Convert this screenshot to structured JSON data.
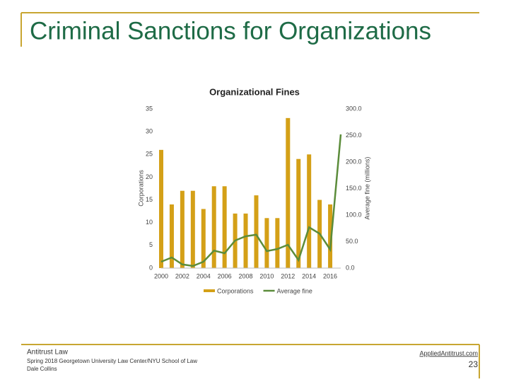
{
  "slide": {
    "title": "Criminal Sanctions for Organizations",
    "footer_left": [
      "Antitrust Law",
      "Spring 2018 Georgetown University Law Center/NYU School of Law",
      "Dale Collins"
    ],
    "footer_link": "AppliedAntitrust.com",
    "page_number": "23"
  },
  "chart_data": {
    "type": "bar",
    "title": "Organizational Fines",
    "x": [
      2000,
      2001,
      2002,
      2003,
      2004,
      2005,
      2006,
      2007,
      2008,
      2009,
      2010,
      2011,
      2012,
      2013,
      2014,
      2015,
      2016,
      2017
    ],
    "xlim": [
      2000,
      2017
    ],
    "xticks": [
      2000,
      2002,
      2004,
      2006,
      2008,
      2010,
      2012,
      2014,
      2016
    ],
    "y_label": "Corporations",
    "y2_label": "Average fine (millions)",
    "ylim": [
      0,
      35
    ],
    "yticks": [
      0,
      5,
      10,
      15,
      20,
      25,
      30,
      35
    ],
    "y2lim": [
      0,
      300
    ],
    "y2ticks": [
      {
        "value": 0,
        "label": "0.0"
      },
      {
        "value": 50,
        "label": "50.0"
      },
      {
        "value": 100,
        "label": "100.0"
      },
      {
        "value": 150,
        "label": "150.0"
      },
      {
        "value": 200,
        "label": "200.0"
      },
      {
        "value": 250,
        "label": "250.0"
      },
      {
        "value": 300,
        "label": "300.0"
      }
    ],
    "grid": false,
    "series": [
      {
        "name": "Corporations",
        "type": "bar",
        "color": "#d4a017",
        "values": [
          26,
          14,
          17,
          17,
          13,
          18,
          18,
          12,
          12,
          16,
          11,
          11,
          33,
          24,
          25,
          15,
          14,
          null
        ]
      },
      {
        "name": "Average fine",
        "type": "line",
        "axis": "y2",
        "color": "#5b8c3a",
        "values": [
          12,
          20,
          7,
          4,
          12,
          33,
          28,
          52,
          60,
          63,
          32,
          36,
          44,
          15,
          77,
          65,
          35,
          252
        ]
      }
    ]
  }
}
